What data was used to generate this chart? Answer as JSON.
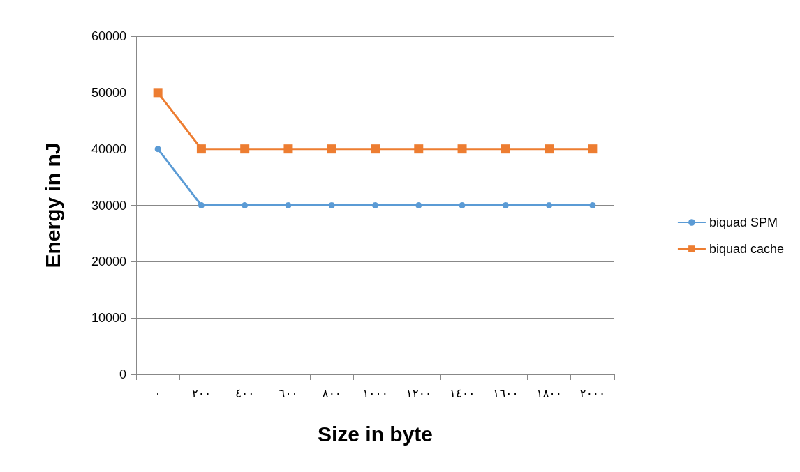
{
  "chart_data": {
    "type": "line",
    "xlabel": "Size in byte",
    "ylabel": "Energy in nJ",
    "categories": [
      "٠",
      "٢٠٠",
      "٤٠٠",
      "٦٠٠",
      "٨٠٠",
      "١٠٠٠",
      "١٢٠٠",
      "١٤٠٠",
      "١٦٠٠",
      "١٨٠٠",
      "٢٠٠٠"
    ],
    "series": [
      {
        "name": "biquad SPM",
        "color": "#5b9bd5",
        "marker": "circle",
        "values": [
          40000,
          30000,
          30000,
          30000,
          30000,
          30000,
          30000,
          30000,
          30000,
          30000,
          30000
        ]
      },
      {
        "name": "biquad cache",
        "color": "#ed7d31",
        "marker": "square",
        "values": [
          50000,
          40000,
          40000,
          40000,
          40000,
          40000,
          40000,
          40000,
          40000,
          40000,
          40000
        ]
      }
    ],
    "ylim": [
      0,
      60000
    ],
    "yticks": [
      0,
      10000,
      20000,
      30000,
      40000,
      50000,
      60000
    ],
    "grid": "y",
    "legend": "right"
  }
}
